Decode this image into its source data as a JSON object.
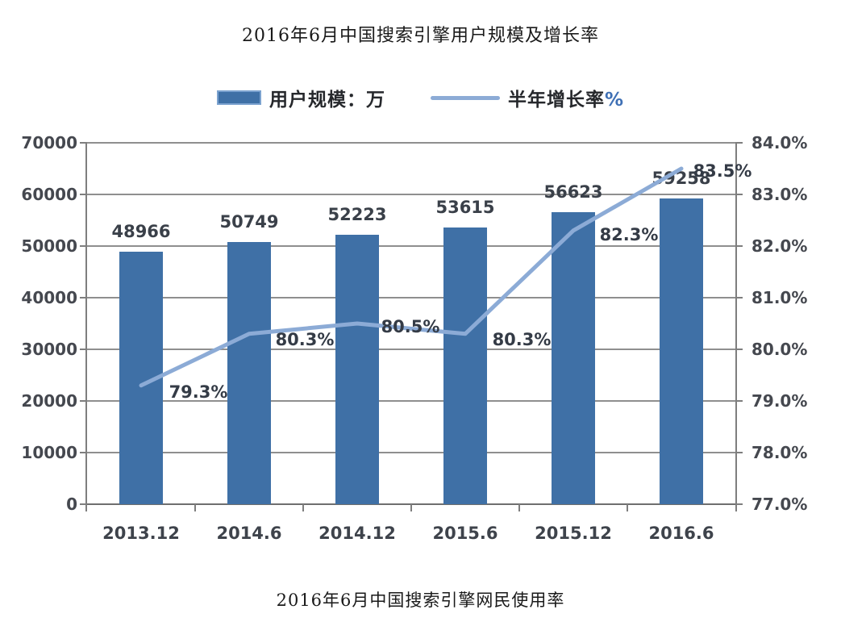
{
  "page": {
    "title": "2016年6月中国搜索引擎用户规模及增长率",
    "caption": "2016年6月中国搜索引擎网民使用率"
  },
  "legend": {
    "bar_label": "用户规模：万",
    "line_label": "半年增长率",
    "line_suffix": "%",
    "bar_color": "#3f70a6",
    "line_color": "#8cabd6"
  },
  "chart_data": {
    "type": "bar",
    "combo": "bar+line",
    "title": "2016年6月中国搜索引擎用户规模及增长率",
    "caption": "2016年6月中国搜索引擎网民使用率",
    "categories": [
      "2013.12",
      "2014.6",
      "2014.12",
      "2015.6",
      "2015.12",
      "2016.6"
    ],
    "series": [
      {
        "name": "用户规模：万",
        "type": "bar",
        "axis": "left",
        "color": "#3f70a6",
        "values": [
          48966,
          50749,
          52223,
          53615,
          56623,
          59258
        ],
        "labels": [
          "48966",
          "50749",
          "52223",
          "53615",
          "56623",
          "59258"
        ]
      },
      {
        "name": "半年增长率%",
        "type": "line",
        "axis": "right",
        "color": "#8cabd6",
        "values": [
          79.3,
          80.3,
          80.5,
          80.3,
          82.3,
          83.5
        ],
        "labels": [
          "79.3%",
          "80.3%",
          "80.5%",
          "80.3%",
          "82.3%",
          "83.5%"
        ]
      }
    ],
    "left_axis": {
      "min": 0,
      "max": 70000,
      "step": 10000,
      "ticks": [
        "70000",
        "60000",
        "50000",
        "40000",
        "30000",
        "20000",
        "10000",
        "0"
      ]
    },
    "right_axis": {
      "min": 77,
      "max": 84,
      "step": 1,
      "ticks": [
        "84.0%",
        "83.0%",
        "82.0%",
        "81.0%",
        "80.0%",
        "79.0%",
        "78.0%",
        "77.0%"
      ]
    },
    "grid": true,
    "legend_position": "top",
    "gridline_color": "#8f8f8f"
  }
}
